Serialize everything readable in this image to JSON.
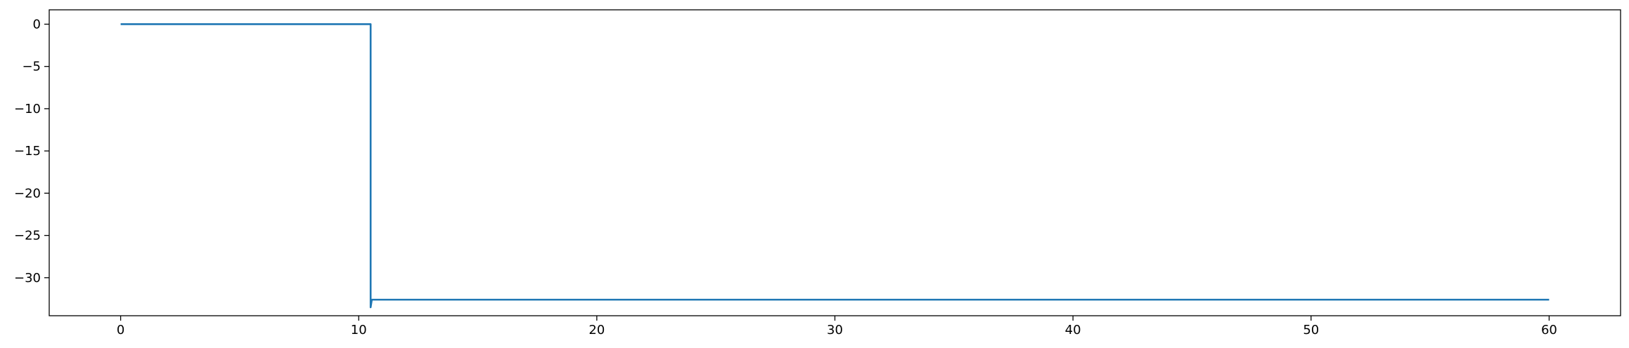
{
  "chart_data": {
    "type": "line",
    "title": "",
    "xlabel": "",
    "ylabel": "",
    "xlim": [
      -3,
      63
    ],
    "ylim": [
      -34.5,
      1.7
    ],
    "grid": false,
    "x_ticks": [
      0,
      10,
      20,
      30,
      40,
      50,
      60
    ],
    "y_ticks": [
      0,
      -5,
      -10,
      -15,
      -20,
      -25,
      -30
    ],
    "x_tick_labels": [
      "0",
      "10",
      "20",
      "30",
      "40",
      "50",
      "60"
    ],
    "y_tick_labels": [
      "0",
      "−5",
      "−10",
      "−15",
      "−20",
      "−25",
      "−30"
    ],
    "series": [
      {
        "color": "#1f77b4",
        "x": [
          0,
          10.5,
          10.5,
          10.55,
          10.6,
          20,
          30,
          40,
          50,
          60
        ],
        "y": [
          0,
          0,
          -33.5,
          -32.6,
          -32.6,
          -32.6,
          -32.6,
          -32.6,
          -32.6,
          -32.6
        ]
      }
    ]
  }
}
